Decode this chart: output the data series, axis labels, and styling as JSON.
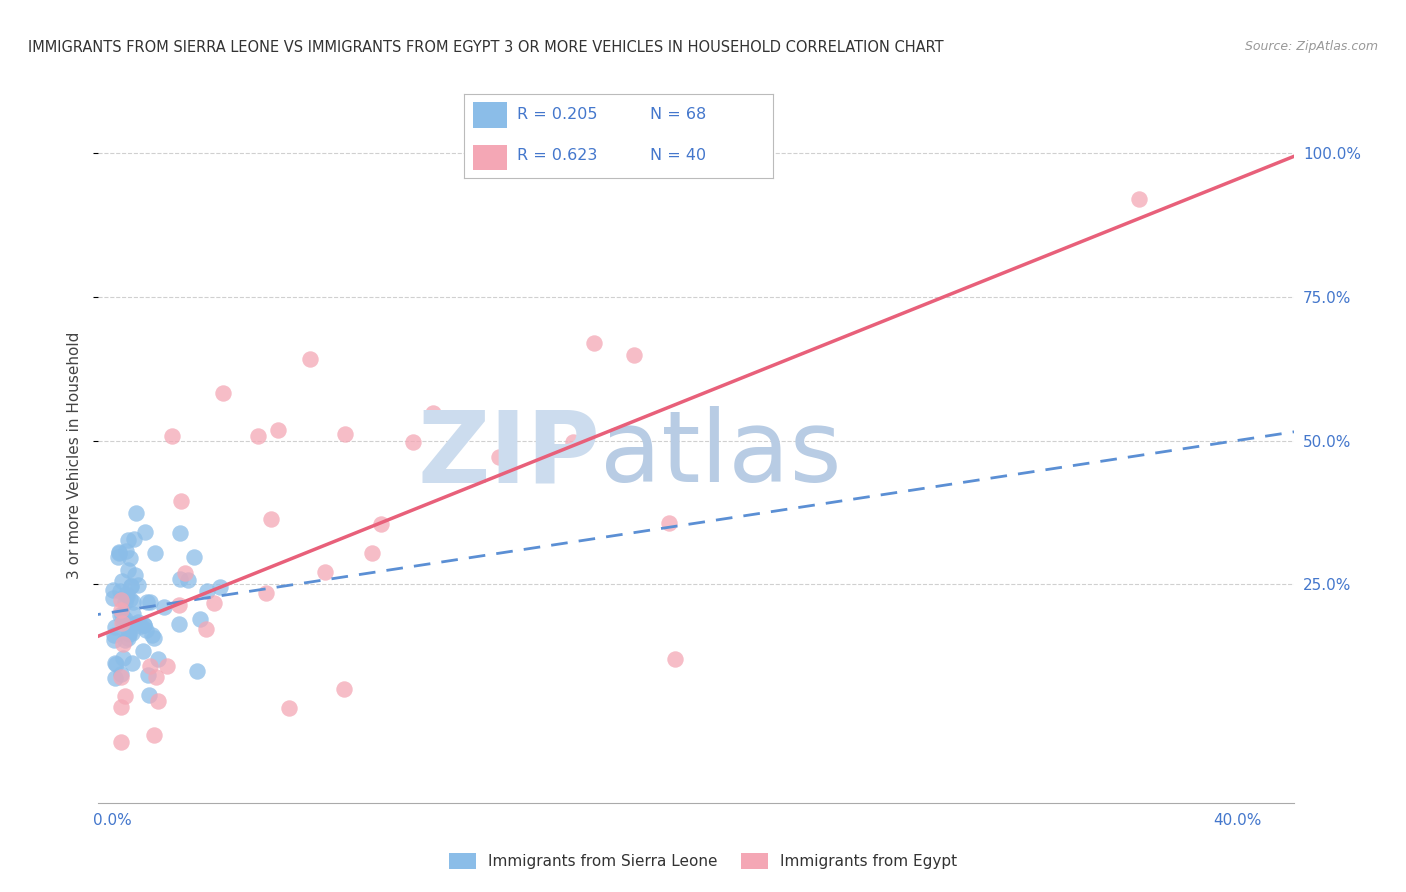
{
  "title": "IMMIGRANTS FROM SIERRA LEONE VS IMMIGRANTS FROM EGYPT 3 OR MORE VEHICLES IN HOUSEHOLD CORRELATION CHART",
  "source": "Source: ZipAtlas.com",
  "ylabel": "3 or more Vehicles in Household",
  "xlim": [
    -0.005,
    0.42
  ],
  "ylim": [
    -0.13,
    1.08
  ],
  "ytick_positions": [
    0.25,
    0.5,
    0.75,
    1.0
  ],
  "ytick_labels": [
    "25.0%",
    "50.0%",
    "75.0%",
    "100.0%"
  ],
  "xtick_positions": [
    0.0,
    0.4
  ],
  "xtick_labels": [
    "0.0%",
    "40.0%"
  ],
  "color_sierra": "#8bbde8",
  "color_egypt": "#f4a7b5",
  "color_trendline_sierra": "#5b8fd4",
  "color_trendline_egypt": "#e8607a",
  "color_blue_text": "#4477cc",
  "color_grid": "#d0d0d0",
  "background_color": "#ffffff",
  "watermark_color_zip": "#ccdcee",
  "watermark_color_atlas": "#b8cce4"
}
